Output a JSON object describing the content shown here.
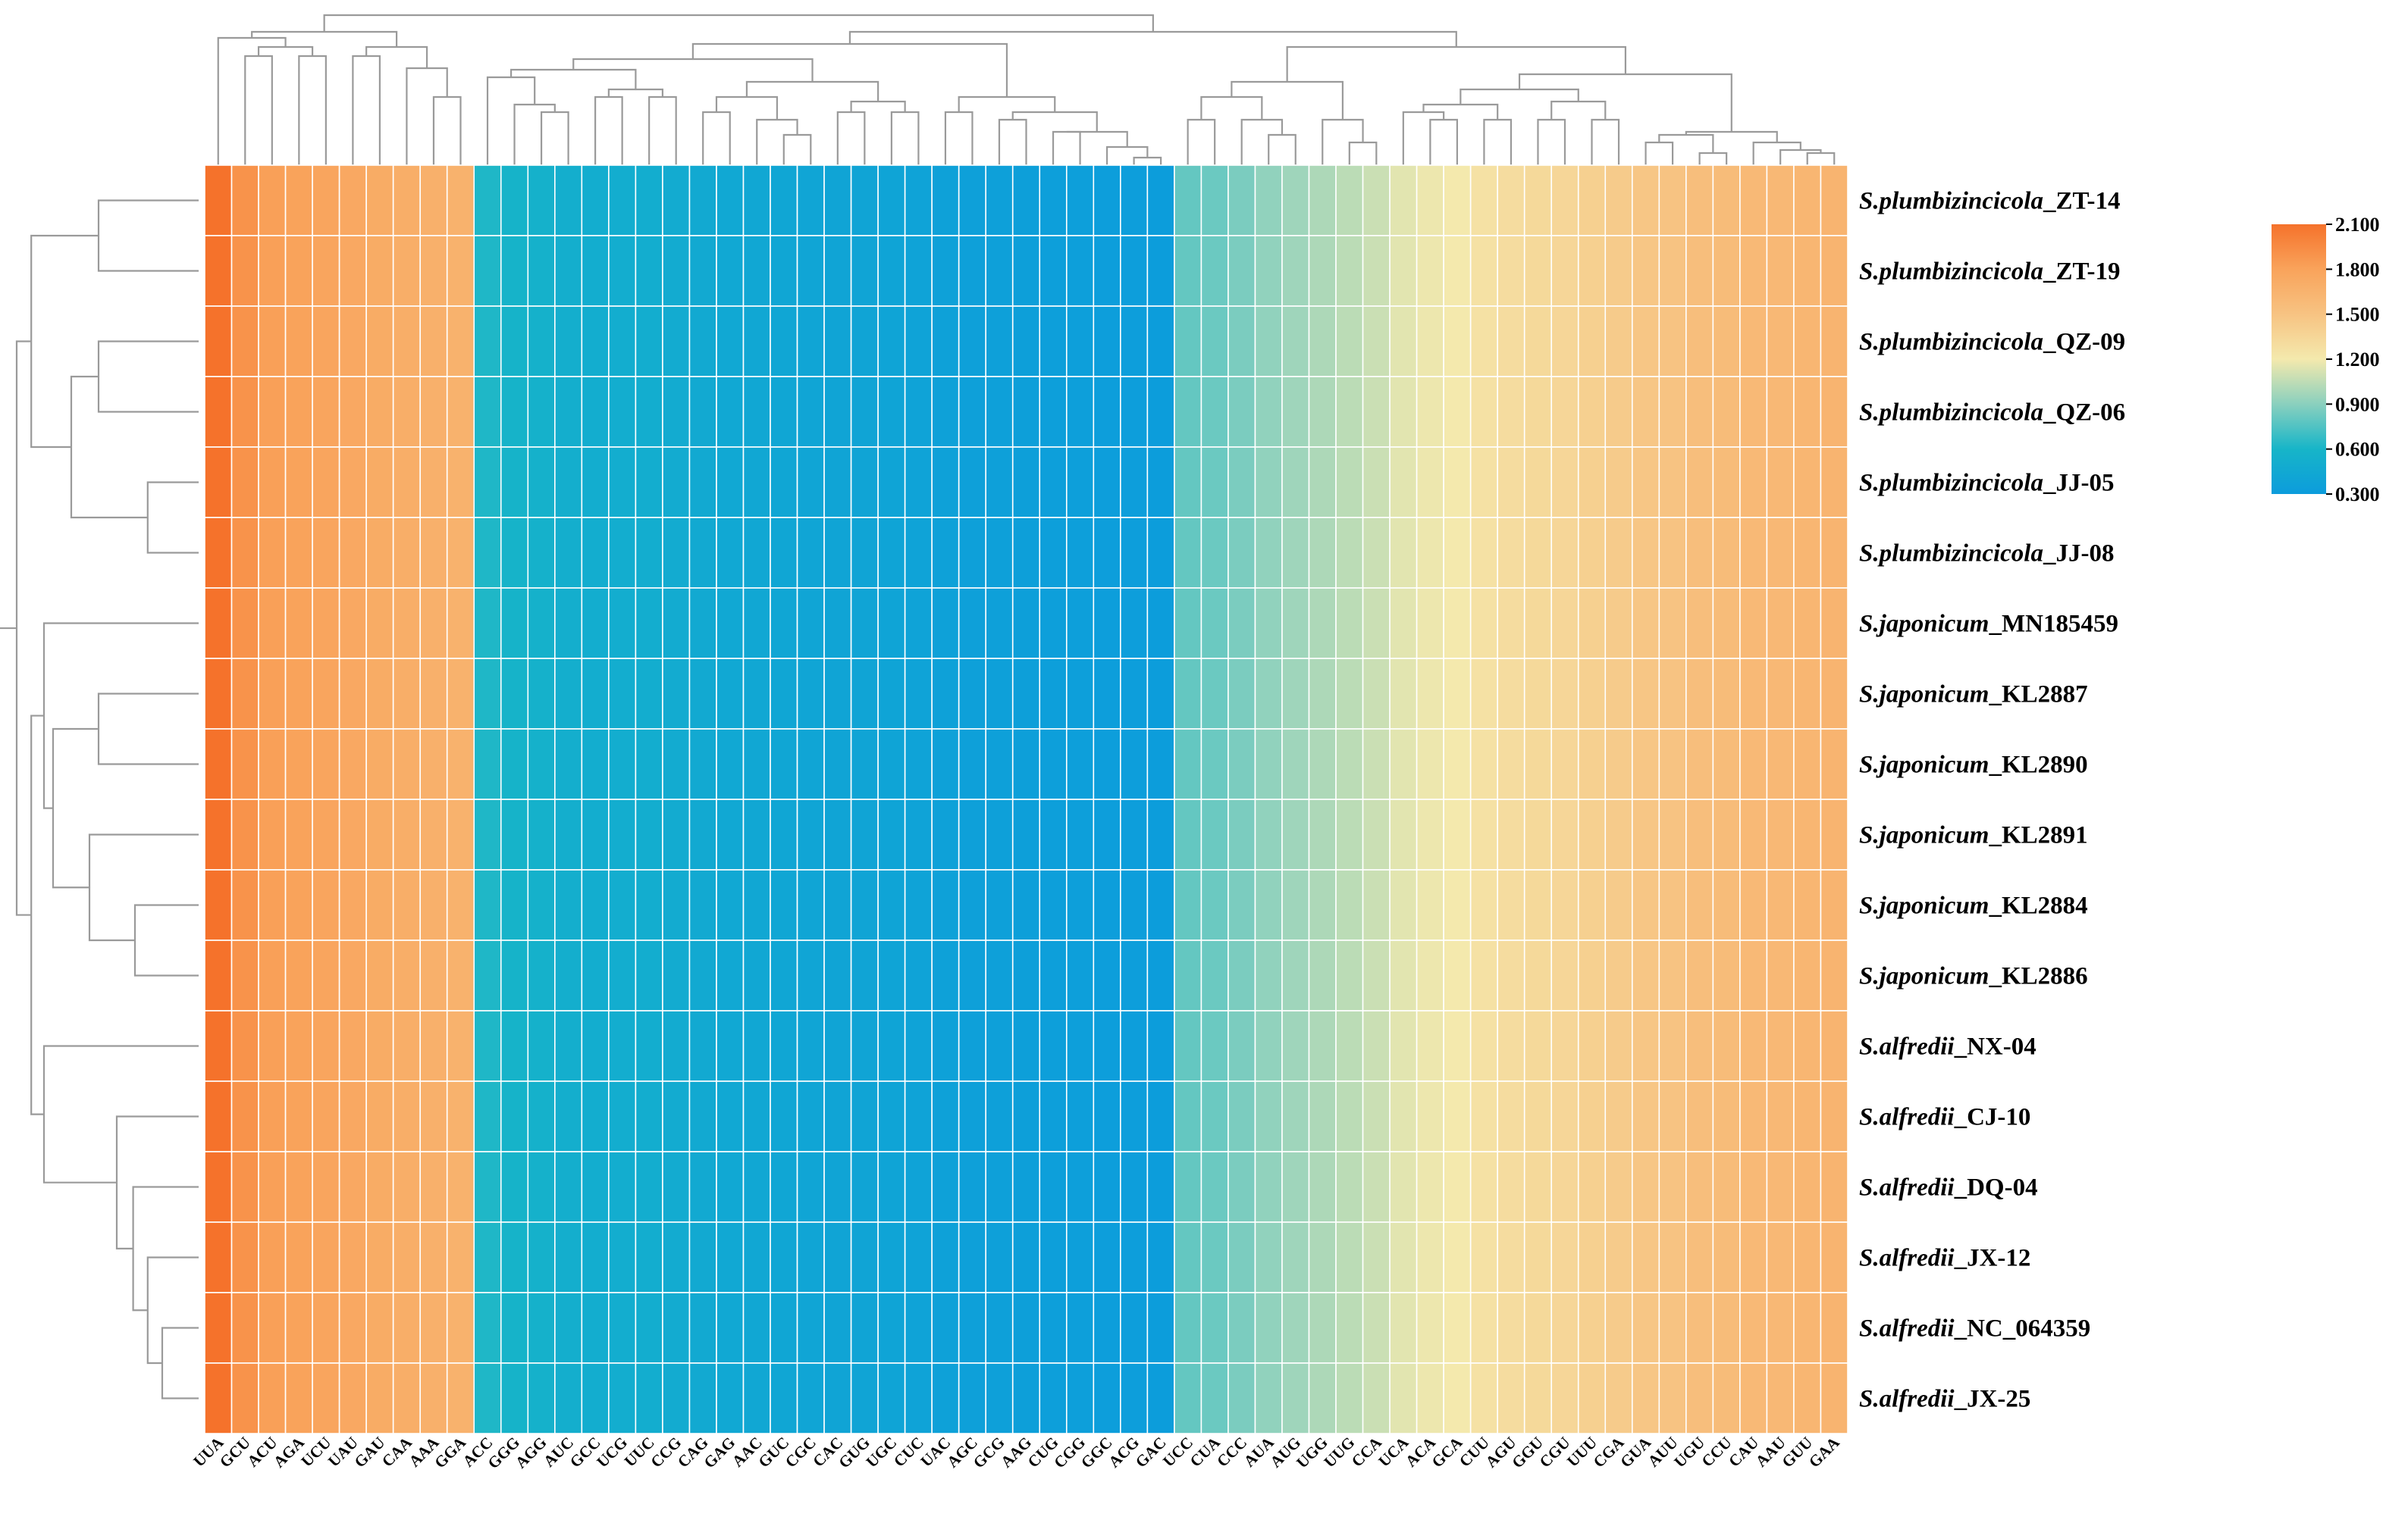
{
  "chart_data": {
    "type": "heatmap",
    "title": "",
    "xlabel": "",
    "ylabel": "",
    "columns": [
      "UUA",
      "GCU",
      "ACU",
      "AGA",
      "UCU",
      "UAU",
      "GAU",
      "CAA",
      "AAA",
      "GGA",
      "ACC",
      "GGG",
      "AGG",
      "AUC",
      "GCC",
      "UCG",
      "UUC",
      "CCG",
      "CAG",
      "GAG",
      "AAC",
      "GUC",
      "CGC",
      "CAC",
      "GUG",
      "UGC",
      "CUC",
      "UAC",
      "AGC",
      "GCG",
      "AAG",
      "CUG",
      "CGG",
      "GGC",
      "ACG",
      "GAC",
      "UCC",
      "CUA",
      "CCC",
      "AUA",
      "AUG",
      "UGG",
      "UUG",
      "CCA",
      "UCA",
      "ACA",
      "GCA",
      "CUU",
      "AGU",
      "GGU",
      "CGU",
      "UUU",
      "CGA",
      "GUA",
      "AUU",
      "UGU",
      "CCU",
      "CAU",
      "AAU",
      "GUU",
      "GAA"
    ],
    "rows": [
      {
        "italic": "S.plumbizincicola",
        "suffix": "_ZT-14"
      },
      {
        "italic": "S.plumbizincicola",
        "suffix": "_ZT-19"
      },
      {
        "italic": "S.plumbizincicola",
        "suffix": "_QZ-09"
      },
      {
        "italic": "S.plumbizincicola",
        "suffix": "_QZ-06"
      },
      {
        "italic": "S.plumbizincicola",
        "suffix": "_JJ-05"
      },
      {
        "italic": "S.plumbizincicola",
        "suffix": "_JJ-08"
      },
      {
        "italic": "S.japonicum",
        "suffix": "_MN185459"
      },
      {
        "italic": "S.japonicum",
        "suffix": "_KL2887"
      },
      {
        "italic": "S.japonicum",
        "suffix": "_KL2890"
      },
      {
        "italic": "S.japonicum",
        "suffix": "_KL2891"
      },
      {
        "italic": "S.japonicum",
        "suffix": "_KL2884"
      },
      {
        "italic": "S.japonicum",
        "suffix": "_KL2886"
      },
      {
        "italic": "S.alfredii",
        "suffix": "_NX-04"
      },
      {
        "italic": "S.alfredii",
        "suffix": "_CJ-10"
      },
      {
        "italic": "S.alfredii",
        "suffix": "_DQ-04"
      },
      {
        "italic": "S.alfredii",
        "suffix": "_JX-12"
      },
      {
        "italic": "S.alfredii",
        "suffix": "_NC_064359"
      },
      {
        "italic": "S.alfredii",
        "suffix": "_JX-25"
      }
    ],
    "column_values": [
      2.1,
      1.9,
      1.82,
      1.8,
      1.78,
      1.75,
      1.72,
      1.7,
      1.68,
      1.66,
      0.62,
      0.58,
      0.55,
      0.52,
      0.5,
      0.5,
      0.5,
      0.48,
      0.46,
      0.44,
      0.43,
      0.42,
      0.41,
      0.4,
      0.4,
      0.39,
      0.38,
      0.36,
      0.35,
      0.35,
      0.34,
      0.33,
      0.33,
      0.32,
      0.32,
      0.31,
      0.8,
      0.82,
      0.86,
      0.92,
      0.96,
      1.0,
      1.04,
      1.08,
      1.15,
      1.18,
      1.2,
      1.26,
      1.3,
      1.33,
      1.35,
      1.4,
      1.44,
      1.48,
      1.5,
      1.55,
      1.57,
      1.59,
      1.6,
      1.62,
      1.64
    ],
    "colorbar": {
      "range": [
        0.3,
        2.1
      ],
      "ticks": [
        "2.100",
        "1.800",
        "1.500",
        "1.200",
        "0.900",
        "0.600",
        "0.300"
      ],
      "colors": [
        "#0C9CDC",
        "#17B5C8",
        "#8AD0BE",
        "#F4E9AD",
        "#F7C382",
        "#F9A35B",
        "#F5722B"
      ]
    },
    "legend": "right",
    "row_dendrogram": true,
    "column_dendrogram": true
  }
}
